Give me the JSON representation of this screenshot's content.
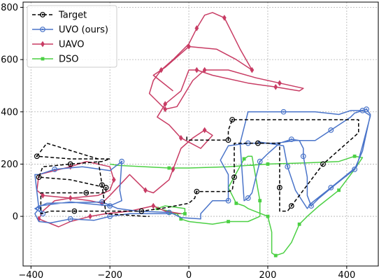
{
  "chart_data": {
    "type": "line",
    "xlim": [
      -420,
      480
    ],
    "ylim": [
      -190,
      820
    ],
    "xticks": [
      -400,
      -200,
      0,
      200,
      400
    ],
    "yticks": [
      0,
      200,
      400,
      600,
      800
    ],
    "grid": true,
    "legend_position": "top-left",
    "series": [
      {
        "name": "Target",
        "color": "#000000",
        "style": "dashed",
        "marker": "circle",
        "points": [
          [
            -5,
            305
          ],
          [
            -5,
            292
          ],
          [
            45,
            292
          ],
          [
            100,
            292
          ],
          [
            100,
            330
          ],
          [
            110,
            370
          ],
          [
            200,
            370
          ],
          [
            300,
            370
          ],
          [
            400,
            370
          ],
          [
            430,
            370
          ],
          [
            430,
            320
          ],
          [
            400,
            280
          ],
          [
            340,
            200
          ],
          [
            300,
            120
          ],
          [
            260,
            40
          ],
          [
            250,
            20
          ],
          [
            230,
            20
          ],
          [
            230,
            110
          ],
          [
            230,
            190
          ],
          [
            230,
            280
          ],
          [
            190,
            280
          ],
          [
            175,
            280
          ],
          [
            115,
            280
          ],
          [
            115,
            230
          ],
          [
            115,
            150
          ],
          [
            110,
            100
          ],
          [
            100,
            95
          ],
          [
            20,
            95
          ],
          [
            15,
            70
          ],
          [
            0,
            50
          ],
          [
            -70,
            30
          ],
          [
            -120,
            20
          ],
          [
            -220,
            20
          ],
          [
            -290,
            20
          ],
          [
            -350,
            20
          ],
          [
            -375,
            10
          ],
          [
            -375,
            90
          ],
          [
            -260,
            90
          ],
          [
            -210,
            90
          ],
          [
            -210,
            110
          ],
          [
            -300,
            140
          ],
          [
            -380,
            150
          ],
          [
            -370,
            190
          ],
          [
            -300,
            200
          ],
          [
            -220,
            210
          ],
          [
            -200,
            220
          ],
          [
            -300,
            220
          ],
          [
            -385,
            230
          ],
          [
            -360,
            280
          ],
          [
            -230,
            220
          ],
          [
            -220,
            120
          ],
          [
            -210,
            10
          ],
          [
            -110,
            0
          ],
          [
            -100,
            0
          ]
        ],
        "marker_indices": [
          3,
          5,
          12,
          14,
          17,
          21,
          24,
          27,
          31,
          33,
          37,
          39,
          41,
          43,
          47,
          50
        ]
      },
      {
        "name": "UVO (ours)",
        "color": "#4a74c9",
        "style": "solid",
        "marker": "circle",
        "points": [
          [
            -50,
            10
          ],
          [
            -100,
            10
          ],
          [
            -150,
            10
          ],
          [
            -200,
            0
          ],
          [
            -240,
            -15
          ],
          [
            -300,
            -10
          ],
          [
            -350,
            -25
          ],
          [
            -380,
            -20
          ],
          [
            -390,
            10
          ],
          [
            -380,
            30
          ],
          [
            -390,
            160
          ],
          [
            -380,
            160
          ],
          [
            -340,
            180
          ],
          [
            -270,
            190
          ],
          [
            -200,
            175
          ],
          [
            -170,
            210
          ],
          [
            -175,
            100
          ],
          [
            -170,
            60
          ],
          [
            -200,
            40
          ],
          [
            -300,
            55
          ],
          [
            -380,
            40
          ],
          [
            -370,
            10
          ],
          [
            -390,
            30
          ],
          [
            -360,
            50
          ],
          [
            -220,
            55
          ],
          [
            -180,
            30
          ],
          [
            -130,
            20
          ],
          [
            -50,
            15
          ],
          [
            -40,
            10
          ],
          [
            -20,
            -5
          ],
          [
            30,
            -10
          ],
          [
            30,
            10
          ],
          [
            60,
            60
          ],
          [
            100,
            60
          ],
          [
            100,
            160
          ],
          [
            80,
            215
          ],
          [
            100,
            270
          ],
          [
            150,
            280
          ],
          [
            220,
            280
          ],
          [
            270,
            290
          ],
          [
            320,
            290
          ],
          [
            360,
            330
          ],
          [
            410,
            380
          ],
          [
            420,
            395
          ],
          [
            450,
            410
          ],
          [
            460,
            390
          ],
          [
            440,
            250
          ],
          [
            420,
            180
          ],
          [
            370,
            120
          ],
          [
            330,
            70
          ],
          [
            310,
            40
          ],
          [
            300,
            80
          ],
          [
            300,
            150
          ],
          [
            290,
            230
          ],
          [
            290,
            260
          ],
          [
            280,
            290
          ],
          [
            260,
            295
          ],
          [
            230,
            280
          ],
          [
            200,
            240
          ],
          [
            180,
            210
          ],
          [
            170,
            150
          ],
          [
            160,
            90
          ],
          [
            150,
            70
          ],
          [
            140,
            60
          ],
          [
            130,
            280
          ],
          [
            150,
            400
          ],
          [
            240,
            400
          ],
          [
            320,
            400
          ],
          [
            380,
            390
          ],
          [
            410,
            405
          ],
          [
            440,
            405
          ],
          [
            460,
            385
          ],
          [
            440,
            270
          ],
          [
            425,
            190
          ],
          [
            360,
            110
          ],
          [
            310,
            50
          ],
          [
            300,
            30
          ],
          [
            270,
            100
          ],
          [
            250,
            190
          ],
          [
            240,
            270
          ],
          [
            200,
            280
          ],
          [
            175,
            285
          ]
        ],
        "marker_indices": [
          3,
          5,
          9,
          12,
          15,
          18,
          21,
          24,
          27,
          33,
          37,
          41,
          44,
          47,
          50,
          53,
          56,
          59,
          62,
          66,
          70,
          74,
          78
        ]
      },
      {
        "name": "UAVO",
        "color": "#c83c64",
        "style": "solid",
        "marker": "diamond",
        "points": [
          [
            -20,
            10
          ],
          [
            -60,
            20
          ],
          [
            -90,
            40
          ],
          [
            -150,
            20
          ],
          [
            -210,
            10
          ],
          [
            -250,
            0
          ],
          [
            -300,
            -20
          ],
          [
            -330,
            -40
          ],
          [
            -380,
            -10
          ],
          [
            -370,
            20
          ],
          [
            -340,
            60
          ],
          [
            -300,
            70
          ],
          [
            -230,
            80
          ],
          [
            -200,
            100
          ],
          [
            -190,
            140
          ],
          [
            -200,
            190
          ],
          [
            -260,
            210
          ],
          [
            -300,
            190
          ],
          [
            -380,
            160
          ],
          [
            -385,
            100
          ],
          [
            -370,
            80
          ],
          [
            -300,
            70
          ],
          [
            -250,
            60
          ],
          [
            -220,
            50
          ],
          [
            -200,
            80
          ],
          [
            -150,
            160
          ],
          [
            -110,
            100
          ],
          [
            -90,
            90
          ],
          [
            -50,
            140
          ],
          [
            -40,
            180
          ],
          [
            -20,
            260
          ],
          [
            10,
            300
          ],
          [
            40,
            330
          ],
          [
            60,
            310
          ],
          [
            30,
            260
          ],
          [
            -20,
            300
          ],
          [
            -50,
            350
          ],
          [
            -80,
            380
          ],
          [
            -60,
            430
          ],
          [
            -20,
            480
          ],
          [
            0,
            560
          ],
          [
            20,
            560
          ],
          [
            60,
            540
          ],
          [
            150,
            510
          ],
          [
            220,
            495
          ],
          [
            280,
            480
          ],
          [
            290,
            490
          ],
          [
            230,
            510
          ],
          [
            170,
            530
          ],
          [
            100,
            560
          ],
          [
            40,
            560
          ],
          [
            10,
            520
          ],
          [
            -30,
            420
          ],
          [
            -60,
            410
          ],
          [
            -100,
            470
          ],
          [
            -90,
            520
          ],
          [
            -70,
            560
          ],
          [
            -40,
            600
          ],
          [
            0,
            660
          ],
          [
            20,
            720
          ],
          [
            40,
            770
          ],
          [
            60,
            780
          ],
          [
            90,
            760
          ],
          [
            110,
            700
          ],
          [
            130,
            640
          ],
          [
            160,
            560
          ],
          [
            120,
            600
          ],
          [
            70,
            640
          ],
          [
            0,
            650
          ],
          [
            -60,
            570
          ],
          [
            -90,
            540
          ],
          [
            -40,
            480
          ]
        ],
        "marker_indices": [
          2,
          5,
          8,
          11,
          14,
          17,
          20,
          23,
          26,
          29,
          32,
          35,
          38,
          41,
          44,
          47,
          50,
          53,
          56,
          59,
          62,
          65,
          68
        ]
      },
      {
        "name": "DSO",
        "color": "#4cd044",
        "style": "solid",
        "marker": "square",
        "points": [
          [
            -200,
            200
          ],
          [
            -180,
            195
          ],
          [
            -50,
            185
          ],
          [
            0,
            185
          ],
          [
            100,
            190
          ],
          [
            150,
            195
          ],
          [
            200,
            200
          ],
          [
            300,
            205
          ],
          [
            380,
            210
          ],
          [
            420,
            230
          ],
          [
            440,
            225
          ],
          [
            420,
            180
          ],
          [
            380,
            100
          ],
          [
            330,
            40
          ],
          [
            300,
            0
          ],
          [
            280,
            -30
          ],
          [
            260,
            -100
          ],
          [
            240,
            -140
          ],
          [
            220,
            -150
          ],
          [
            210,
            -140
          ],
          [
            210,
            -60
          ],
          [
            200,
            0
          ],
          [
            150,
            30
          ],
          [
            140,
            40
          ],
          [
            120,
            50
          ],
          [
            110,
            80
          ],
          [
            100,
            110
          ],
          [
            140,
            220
          ],
          [
            150,
            230
          ],
          [
            160,
            230
          ],
          [
            180,
            60
          ],
          [
            180,
            0
          ],
          [
            150,
            -20
          ],
          [
            100,
            -20
          ],
          [
            60,
            -30
          ],
          [
            0,
            -20
          ],
          [
            -20,
            -10
          ],
          [
            -30,
            10
          ],
          [
            -50,
            20
          ],
          [
            -80,
            30
          ],
          [
            -60,
            40
          ],
          [
            -10,
            30
          ],
          [
            -10,
            10
          ],
          [
            -100,
            10
          ]
        ],
        "marker_indices": [
          2,
          6,
          9,
          12,
          15,
          18,
          21,
          24,
          27,
          30,
          33,
          36,
          39,
          42
        ]
      }
    ]
  }
}
